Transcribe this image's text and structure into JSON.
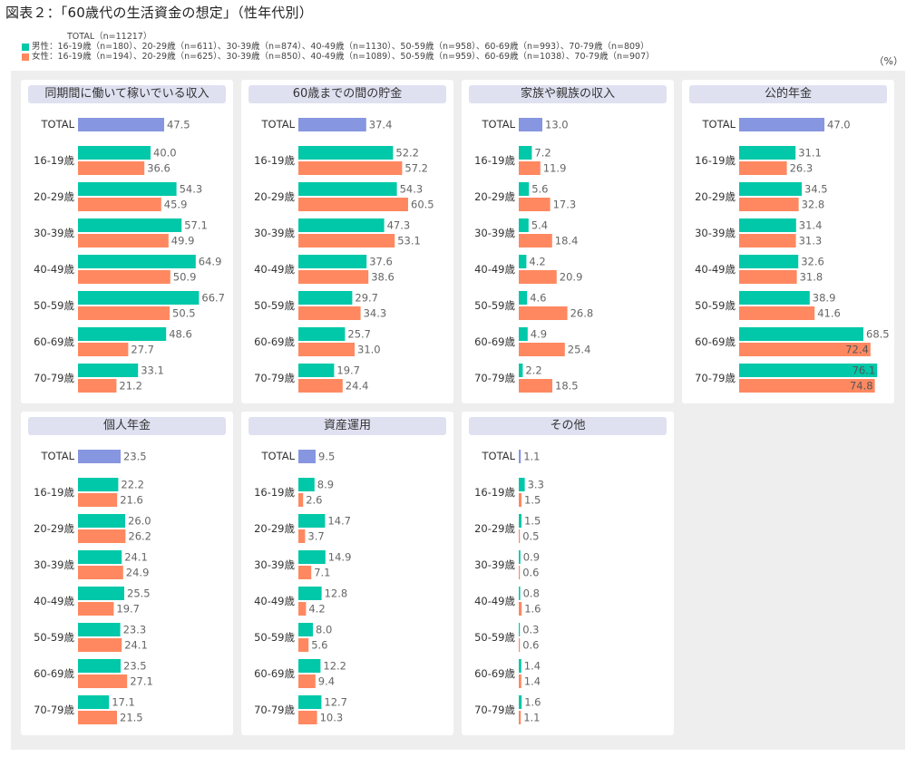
{
  "title": "図表２：「60歳代の生活資金の想定」（性年代別）",
  "legend": {
    "total": "TOTAL（n=11217）",
    "male": "男性：16-19歳（n=180）、20-29歳（n=611）、30-39歳（n=874）、40-49歳（n=1130）、50-59歳（n=958）、60-69歳（n=993）、70-79歳（n=809）",
    "female": "女性：16-19歳（n=194）、20-29歳（n=625）、30-39歳（n=850）、40-49歳（n=1089）、50-59歳（n=959）、60-69歳（n=1038）、70-79歳（n=907）"
  },
  "unit": "（%）",
  "colors": {
    "total": "#8796e0",
    "male": "#00c8a8",
    "female": "#ff8860"
  },
  "chart_data": [
    {
      "type": "bar",
      "title": "同期間に働いて稼いでいる収入",
      "categories": [
        "16-19歳",
        "20-29歳",
        "30-39歳",
        "40-49歳",
        "50-59歳",
        "60-69歳",
        "70-79歳"
      ],
      "total": 47.5,
      "series": [
        {
          "name": "男性",
          "values": [
            40.0,
            54.3,
            57.1,
            64.9,
            66.7,
            48.6,
            33.1
          ]
        },
        {
          "name": "女性",
          "values": [
            36.6,
            45.9,
            49.9,
            50.9,
            50.5,
            27.7,
            21.2
          ]
        }
      ],
      "xlim": [
        0,
        100
      ],
      "unit": "%"
    },
    {
      "type": "bar",
      "title": "60歳までの間の貯金",
      "categories": [
        "16-19歳",
        "20-29歳",
        "30-39歳",
        "40-49歳",
        "50-59歳",
        "60-69歳",
        "70-79歳"
      ],
      "total": 37.4,
      "series": [
        {
          "name": "男性",
          "values": [
            52.2,
            54.3,
            47.3,
            37.6,
            29.7,
            25.7,
            19.7
          ]
        },
        {
          "name": "女性",
          "values": [
            57.2,
            60.5,
            53.1,
            38.6,
            34.3,
            31.0,
            24.4
          ]
        }
      ],
      "xlim": [
        0,
        100
      ],
      "unit": "%"
    },
    {
      "type": "bar",
      "title": "家族や親族の収入",
      "categories": [
        "16-19歳",
        "20-29歳",
        "30-39歳",
        "40-49歳",
        "50-59歳",
        "60-69歳",
        "70-79歳"
      ],
      "total": 13.0,
      "series": [
        {
          "name": "男性",
          "values": [
            7.2,
            5.6,
            5.4,
            4.2,
            4.6,
            4.9,
            2.2
          ]
        },
        {
          "name": "女性",
          "values": [
            11.9,
            17.3,
            18.4,
            20.9,
            26.8,
            25.4,
            18.5
          ]
        }
      ],
      "xlim": [
        0,
        100
      ],
      "unit": "%"
    },
    {
      "type": "bar",
      "title": "公的年金",
      "categories": [
        "16-19歳",
        "20-29歳",
        "30-39歳",
        "40-49歳",
        "50-59歳",
        "60-69歳",
        "70-79歳"
      ],
      "total": 47.0,
      "series": [
        {
          "name": "男性",
          "values": [
            31.1,
            34.5,
            31.4,
            32.6,
            38.9,
            68.5,
            76.1
          ]
        },
        {
          "name": "女性",
          "values": [
            26.3,
            32.8,
            31.3,
            31.8,
            41.6,
            72.4,
            74.8
          ]
        }
      ],
      "xlim": [
        0,
        100
      ],
      "unit": "%"
    },
    {
      "type": "bar",
      "title": "個人年金",
      "categories": [
        "16-19歳",
        "20-29歳",
        "30-39歳",
        "40-49歳",
        "50-59歳",
        "60-69歳",
        "70-79歳"
      ],
      "total": 23.5,
      "series": [
        {
          "name": "男性",
          "values": [
            22.2,
            26.0,
            24.1,
            25.5,
            23.3,
            23.5,
            17.1
          ]
        },
        {
          "name": "女性",
          "values": [
            21.6,
            26.2,
            24.9,
            19.7,
            24.1,
            27.1,
            21.5
          ]
        }
      ],
      "xlim": [
        0,
        100
      ],
      "unit": "%"
    },
    {
      "type": "bar",
      "title": "資産運用",
      "categories": [
        "16-19歳",
        "20-29歳",
        "30-39歳",
        "40-49歳",
        "50-59歳",
        "60-69歳",
        "70-79歳"
      ],
      "total": 9.5,
      "series": [
        {
          "name": "男性",
          "values": [
            8.9,
            14.7,
            14.9,
            12.8,
            8.0,
            12.2,
            12.7
          ]
        },
        {
          "name": "女性",
          "values": [
            2.6,
            3.7,
            7.1,
            4.2,
            5.6,
            9.4,
            10.3
          ]
        }
      ],
      "xlim": [
        0,
        100
      ],
      "unit": "%"
    },
    {
      "type": "bar",
      "title": "その他",
      "categories": [
        "16-19歳",
        "20-29歳",
        "30-39歳",
        "40-49歳",
        "50-59歳",
        "60-69歳",
        "70-79歳"
      ],
      "total": 1.1,
      "series": [
        {
          "name": "男性",
          "values": [
            3.3,
            1.5,
            0.9,
            0.8,
            0.3,
            1.4,
            1.6
          ]
        },
        {
          "name": "女性",
          "values": [
            1.5,
            0.5,
            0.6,
            1.6,
            0.6,
            1.4,
            1.1
          ]
        }
      ],
      "xlim": [
        0,
        100
      ],
      "unit": "%"
    }
  ],
  "total_label": "TOTAL"
}
